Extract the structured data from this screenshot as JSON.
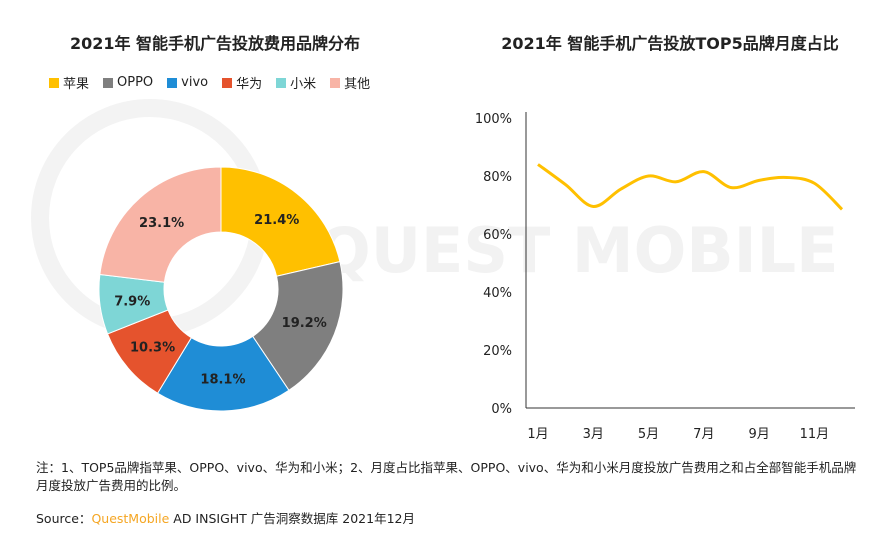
{
  "watermark": "QUEST MOBILE",
  "chart_data": [
    {
      "type": "pie",
      "title": "2021年 智能手机广告投放费用品牌分布",
      "categories": [
        "苹果",
        "OPPO",
        "vivo",
        "华为",
        "小米",
        "其他"
      ],
      "values": [
        21.4,
        19.2,
        18.1,
        10.3,
        7.9,
        23.1
      ],
      "labels": [
        "21.4%",
        "19.2%",
        "18.1%",
        "10.3%",
        "7.9%",
        "23.1%"
      ],
      "colors": [
        "#FFC000",
        "#7F7F7F",
        "#1F8DD6",
        "#E5532D",
        "#7ED6D6",
        "#F8B4A6"
      ],
      "legend_position": "top"
    },
    {
      "type": "line",
      "title": "2021年 智能手机广告投放TOP5品牌月度占比",
      "x": [
        "1月",
        "2月",
        "3月",
        "4月",
        "5月",
        "6月",
        "7月",
        "8月",
        "9月",
        "10月",
        "11月",
        "12月"
      ],
      "xticks": [
        "1月",
        "3月",
        "5月",
        "7月",
        "9月",
        "11月"
      ],
      "series": [
        {
          "values": [
            84,
            77,
            69.5,
            75.5,
            80,
            78,
            81.5,
            76,
            78.5,
            79.5,
            77.5,
            68.5
          ],
          "color": "#FFC000"
        }
      ],
      "ylim": [
        0,
        100
      ],
      "yticks": [
        "0%",
        "20%",
        "40%",
        "60%",
        "80%",
        "100%"
      ],
      "grid": false
    }
  ],
  "note": "注：1、TOP5品牌指苹果、OPPO、vivo、华为和小米；2、月度占比指苹果、OPPO、vivo、华为和小米月度投放广告费用之和占全部智能手机品牌月度投放广告费用的比例。",
  "source": {
    "prefix": "Source：",
    "brand": "QuestMobile",
    "suffix": " AD INSIGHT 广告洞察数据库 2021年12月"
  }
}
